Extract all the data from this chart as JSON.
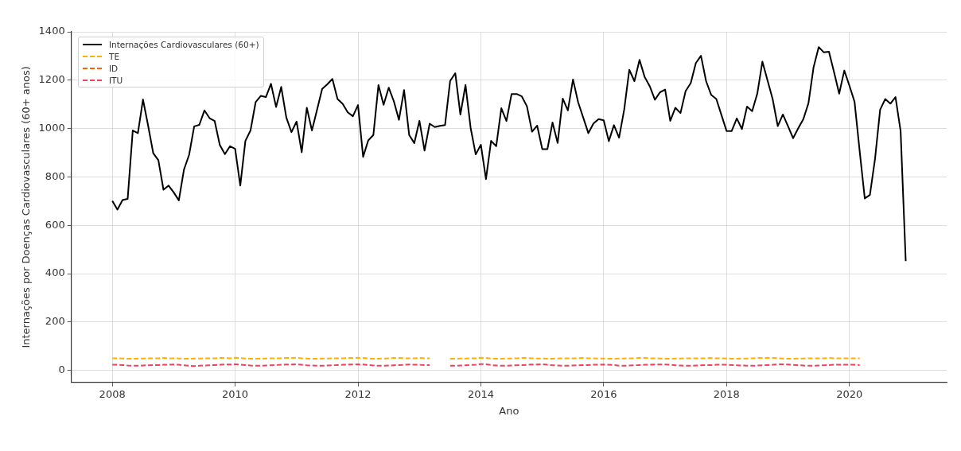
{
  "chart_data": {
    "type": "line",
    "xlabel": "Ano",
    "ylabel": "Internações por Doenças Cardiovasculares (60+ anos)",
    "xlim": [
      "2007-05",
      "2021-08"
    ],
    "xticks": [
      "2008",
      "2010",
      "2012",
      "2014",
      "2016",
      "2018",
      "2020"
    ],
    "ylim": [
      -50,
      1400
    ],
    "yticks": [
      0,
      200,
      400,
      600,
      800,
      1000,
      1200,
      1400
    ],
    "grid": true,
    "legend": "top left",
    "marker": "none",
    "x": [
      "2008-01",
      "2008-02",
      "2008-03",
      "2008-04",
      "2008-05",
      "2008-06",
      "2008-07",
      "2008-08",
      "2008-09",
      "2008-10",
      "2008-11",
      "2008-12",
      "2009-01",
      "2009-02",
      "2009-03",
      "2009-04",
      "2009-05",
      "2009-06",
      "2009-07",
      "2009-08",
      "2009-09",
      "2009-10",
      "2009-11",
      "2009-12",
      "2010-01",
      "2010-02",
      "2010-03",
      "2010-04",
      "2010-05",
      "2010-06",
      "2010-07",
      "2010-08",
      "2010-09",
      "2010-10",
      "2010-11",
      "2010-12",
      "2011-01",
      "2011-02",
      "2011-03",
      "2011-04",
      "2011-05",
      "2011-06",
      "2011-07",
      "2011-08",
      "2011-09",
      "2011-10",
      "2011-11",
      "2011-12",
      "2012-01",
      "2012-02",
      "2012-03",
      "2012-04",
      "2012-05",
      "2012-06",
      "2012-07",
      "2012-08",
      "2012-09",
      "2012-10",
      "2012-11",
      "2012-12",
      "2013-01",
      "2013-02",
      "2013-03",
      "2013-04",
      "2013-05",
      "2013-06",
      "2013-07",
      "2013-08",
      "2013-09",
      "2013-10",
      "2013-11",
      "2013-12",
      "2014-01",
      "2014-02",
      "2014-03",
      "2014-04",
      "2014-05",
      "2014-06",
      "2014-07",
      "2014-08",
      "2014-09",
      "2014-10",
      "2014-11",
      "2014-12",
      "2015-01",
      "2015-02",
      "2015-03",
      "2015-04",
      "2015-05",
      "2015-06",
      "2015-07",
      "2015-08",
      "2015-09",
      "2015-10",
      "2015-11",
      "2015-12",
      "2016-01",
      "2016-02",
      "2016-03",
      "2016-04",
      "2016-05",
      "2016-06",
      "2016-07",
      "2016-08",
      "2016-09",
      "2016-10",
      "2016-11",
      "2016-12",
      "2017-01",
      "2017-02",
      "2017-03",
      "2017-04",
      "2017-05",
      "2017-06",
      "2017-07",
      "2017-08",
      "2017-09",
      "2017-10",
      "2017-11",
      "2017-12",
      "2018-01",
      "2018-02",
      "2018-03",
      "2018-04",
      "2018-05",
      "2018-06",
      "2018-07",
      "2018-08",
      "2018-09",
      "2018-10",
      "2018-11",
      "2018-12",
      "2019-01",
      "2019-02",
      "2019-03",
      "2019-04",
      "2019-05",
      "2019-06",
      "2019-07",
      "2019-08",
      "2019-09",
      "2019-10",
      "2019-11",
      "2019-12",
      "2020-01",
      "2020-02",
      "2020-03",
      "2020-04",
      "2020-05",
      "2020-06",
      "2020-07",
      "2020-08",
      "2020-09",
      "2020-10",
      "2020-11",
      "2020-12"
    ],
    "series": [
      {
        "name": "Internações Cardiovasculares (60+)",
        "color": "#000000",
        "line_style": "solid",
        "values": [
          701,
          665,
          704,
          709,
          992,
          981,
          1120,
          1012,
          898,
          869,
          747,
          764,
          736,
          703,
          830,
          891,
          1009,
          1015,
          1075,
          1043,
          1031,
          932,
          894,
          927,
          916,
          764,
          949,
          992,
          1109,
          1135,
          1130,
          1185,
          1089,
          1172,
          1045,
          985,
          1029,
          902,
          1086,
          992,
          1078,
          1164,
          1183,
          1205,
          1122,
          1102,
          1067,
          1051,
          1097,
          883,
          951,
          973,
          1180,
          1098,
          1169,
          1113,
          1036,
          1159,
          973,
          940,
          1032,
          909,
          1020,
          1006,
          1011,
          1014,
          1197,
          1229,
          1058,
          1180,
          1003,
          893,
          933,
          791,
          949,
          927,
          1084,
          1031,
          1143,
          1143,
          1133,
          1092,
          987,
          1012,
          915,
          915,
          1025,
          940,
          1124,
          1075,
          1203,
          1109,
          1045,
          981,
          1021,
          1039,
          1034,
          948,
          1014,
          962,
          1078,
          1243,
          1196,
          1284,
          1213,
          1175,
          1119,
          1150,
          1161,
          1032,
          1086,
          1064,
          1155,
          1188,
          1271,
          1301,
          1196,
          1139,
          1122,
          1056,
          990,
          990,
          1042,
          998,
          1091,
          1072,
          1144,
          1277,
          1199,
          1122,
          1010,
          1058,
          1010,
          960,
          1001,
          1039,
          1105,
          1254,
          1337,
          1315,
          1318,
          1233,
          1144,
          1240,
          1177,
          1111,
          907,
          711,
          725,
          874,
          1078,
          1122,
          1103,
          1130,
          990,
          452
        ]
      },
      {
        "name": "TE",
        "color": "#ffb000",
        "line_style": "dashed",
        "values": [
          50,
          50,
          49,
          48,
          48,
          49,
          49,
          50,
          50,
          50,
          51,
          50,
          50,
          49,
          48,
          48,
          49,
          49,
          50,
          50,
          50,
          51,
          51,
          50,
          52,
          51,
          49,
          48,
          48,
          49,
          49,
          50,
          50,
          50,
          51,
          51,
          52,
          50,
          49,
          48,
          48,
          49,
          49,
          50,
          50,
          50,
          51,
          51,
          52,
          51,
          49,
          48,
          48,
          49,
          50,
          51,
          51,
          50,
          50,
          50,
          51,
          50,
          50,
          null,
          null,
          null,
          48,
          48,
          49,
          49,
          50,
          50,
          52,
          51,
          49,
          48,
          48,
          49,
          49,
          50,
          51,
          51,
          50,
          49,
          49,
          48,
          48,
          49,
          50,
          50,
          50,
          50,
          51,
          50,
          50,
          49,
          49,
          48,
          48,
          49,
          49,
          50,
          50,
          51,
          51,
          50,
          50,
          49,
          48,
          48,
          49,
          49,
          50,
          50,
          50,
          50,
          50,
          51,
          50,
          50,
          49,
          48,
          48,
          49,
          49,
          50,
          51,
          51,
          52,
          51,
          50,
          49,
          48,
          48,
          49,
          49,
          50,
          50,
          50,
          50,
          51,
          50,
          50,
          50,
          50,
          50,
          50,
          null,
          null,
          null,
          null,
          null,
          null,
          null,
          null,
          null
        ]
      },
      {
        "name": "ID",
        "color": "#fe6100",
        "line_style": "dashed",
        "values": [
          null,
          null,
          null,
          null,
          null,
          null,
          null,
          null,
          null,
          null,
          null,
          null,
          null,
          null,
          null,
          null,
          null,
          null,
          null,
          null,
          null,
          null,
          null,
          null,
          null,
          null,
          null,
          null,
          null,
          null,
          null,
          null,
          null,
          null,
          null,
          null,
          null,
          null,
          null,
          null,
          null,
          null,
          null,
          null,
          null,
          null,
          null,
          null,
          null,
          null,
          null,
          null,
          null,
          null,
          null,
          null,
          null,
          null,
          null,
          null,
          null,
          null,
          null,
          null,
          null,
          null,
          null,
          null,
          null,
          null,
          null,
          null,
          null,
          null,
          null,
          null,
          null,
          null,
          null,
          null,
          null,
          null,
          null,
          null,
          null,
          null,
          null,
          null,
          null,
          null,
          null,
          null,
          null,
          null,
          null,
          null,
          null,
          null,
          null,
          null,
          null,
          null,
          null,
          null,
          null,
          null,
          null,
          null,
          null,
          null,
          null,
          null,
          null,
          null,
          null,
          null,
          null,
          null,
          null,
          null,
          null,
          null,
          null,
          null,
          null,
          null,
          null,
          null,
          null,
          null,
          null,
          null,
          null,
          null,
          null,
          null,
          null,
          null,
          null,
          null,
          null,
          null,
          null,
          null,
          null,
          null,
          null,
          null,
          null,
          null,
          null,
          null,
          null,
          null,
          null,
          null
        ]
      },
      {
        "name": "ITU",
        "color": "#f0405e",
        "line_style": "dashed",
        "values": [
          23,
          23,
          22,
          20,
          19,
          19,
          20,
          21,
          22,
          22,
          23,
          23,
          24,
          23,
          21,
          19,
          18,
          19,
          20,
          21,
          22,
          23,
          24,
          24,
          25,
          24,
          22,
          20,
          19,
          19,
          20,
          21,
          22,
          23,
          24,
          24,
          25,
          23,
          21,
          20,
          19,
          19,
          20,
          21,
          22,
          23,
          24,
          24,
          25,
          24,
          22,
          20,
          19,
          19,
          20,
          21,
          22,
          23,
          24,
          23,
          23,
          22,
          22,
          null,
          null,
          null,
          19,
          19,
          20,
          21,
          22,
          23,
          26,
          25,
          22,
          20,
          19,
          19,
          20,
          21,
          22,
          23,
          24,
          24,
          25,
          23,
          21,
          20,
          19,
          19,
          20,
          21,
          22,
          22,
          23,
          23,
          24,
          23,
          22,
          19,
          19,
          20,
          21,
          22,
          23,
          23,
          24,
          24,
          24,
          23,
          21,
          20,
          19,
          19,
          20,
          21,
          22,
          22,
          23,
          23,
          23,
          22,
          21,
          20,
          19,
          19,
          20,
          21,
          22,
          23,
          25,
          25,
          24,
          23,
          21,
          20,
          19,
          19,
          20,
          21,
          22,
          23,
          23,
          23,
          23,
          23,
          22,
          null,
          null,
          null,
          null,
          null,
          null,
          null,
          null,
          null
        ]
      }
    ]
  }
}
